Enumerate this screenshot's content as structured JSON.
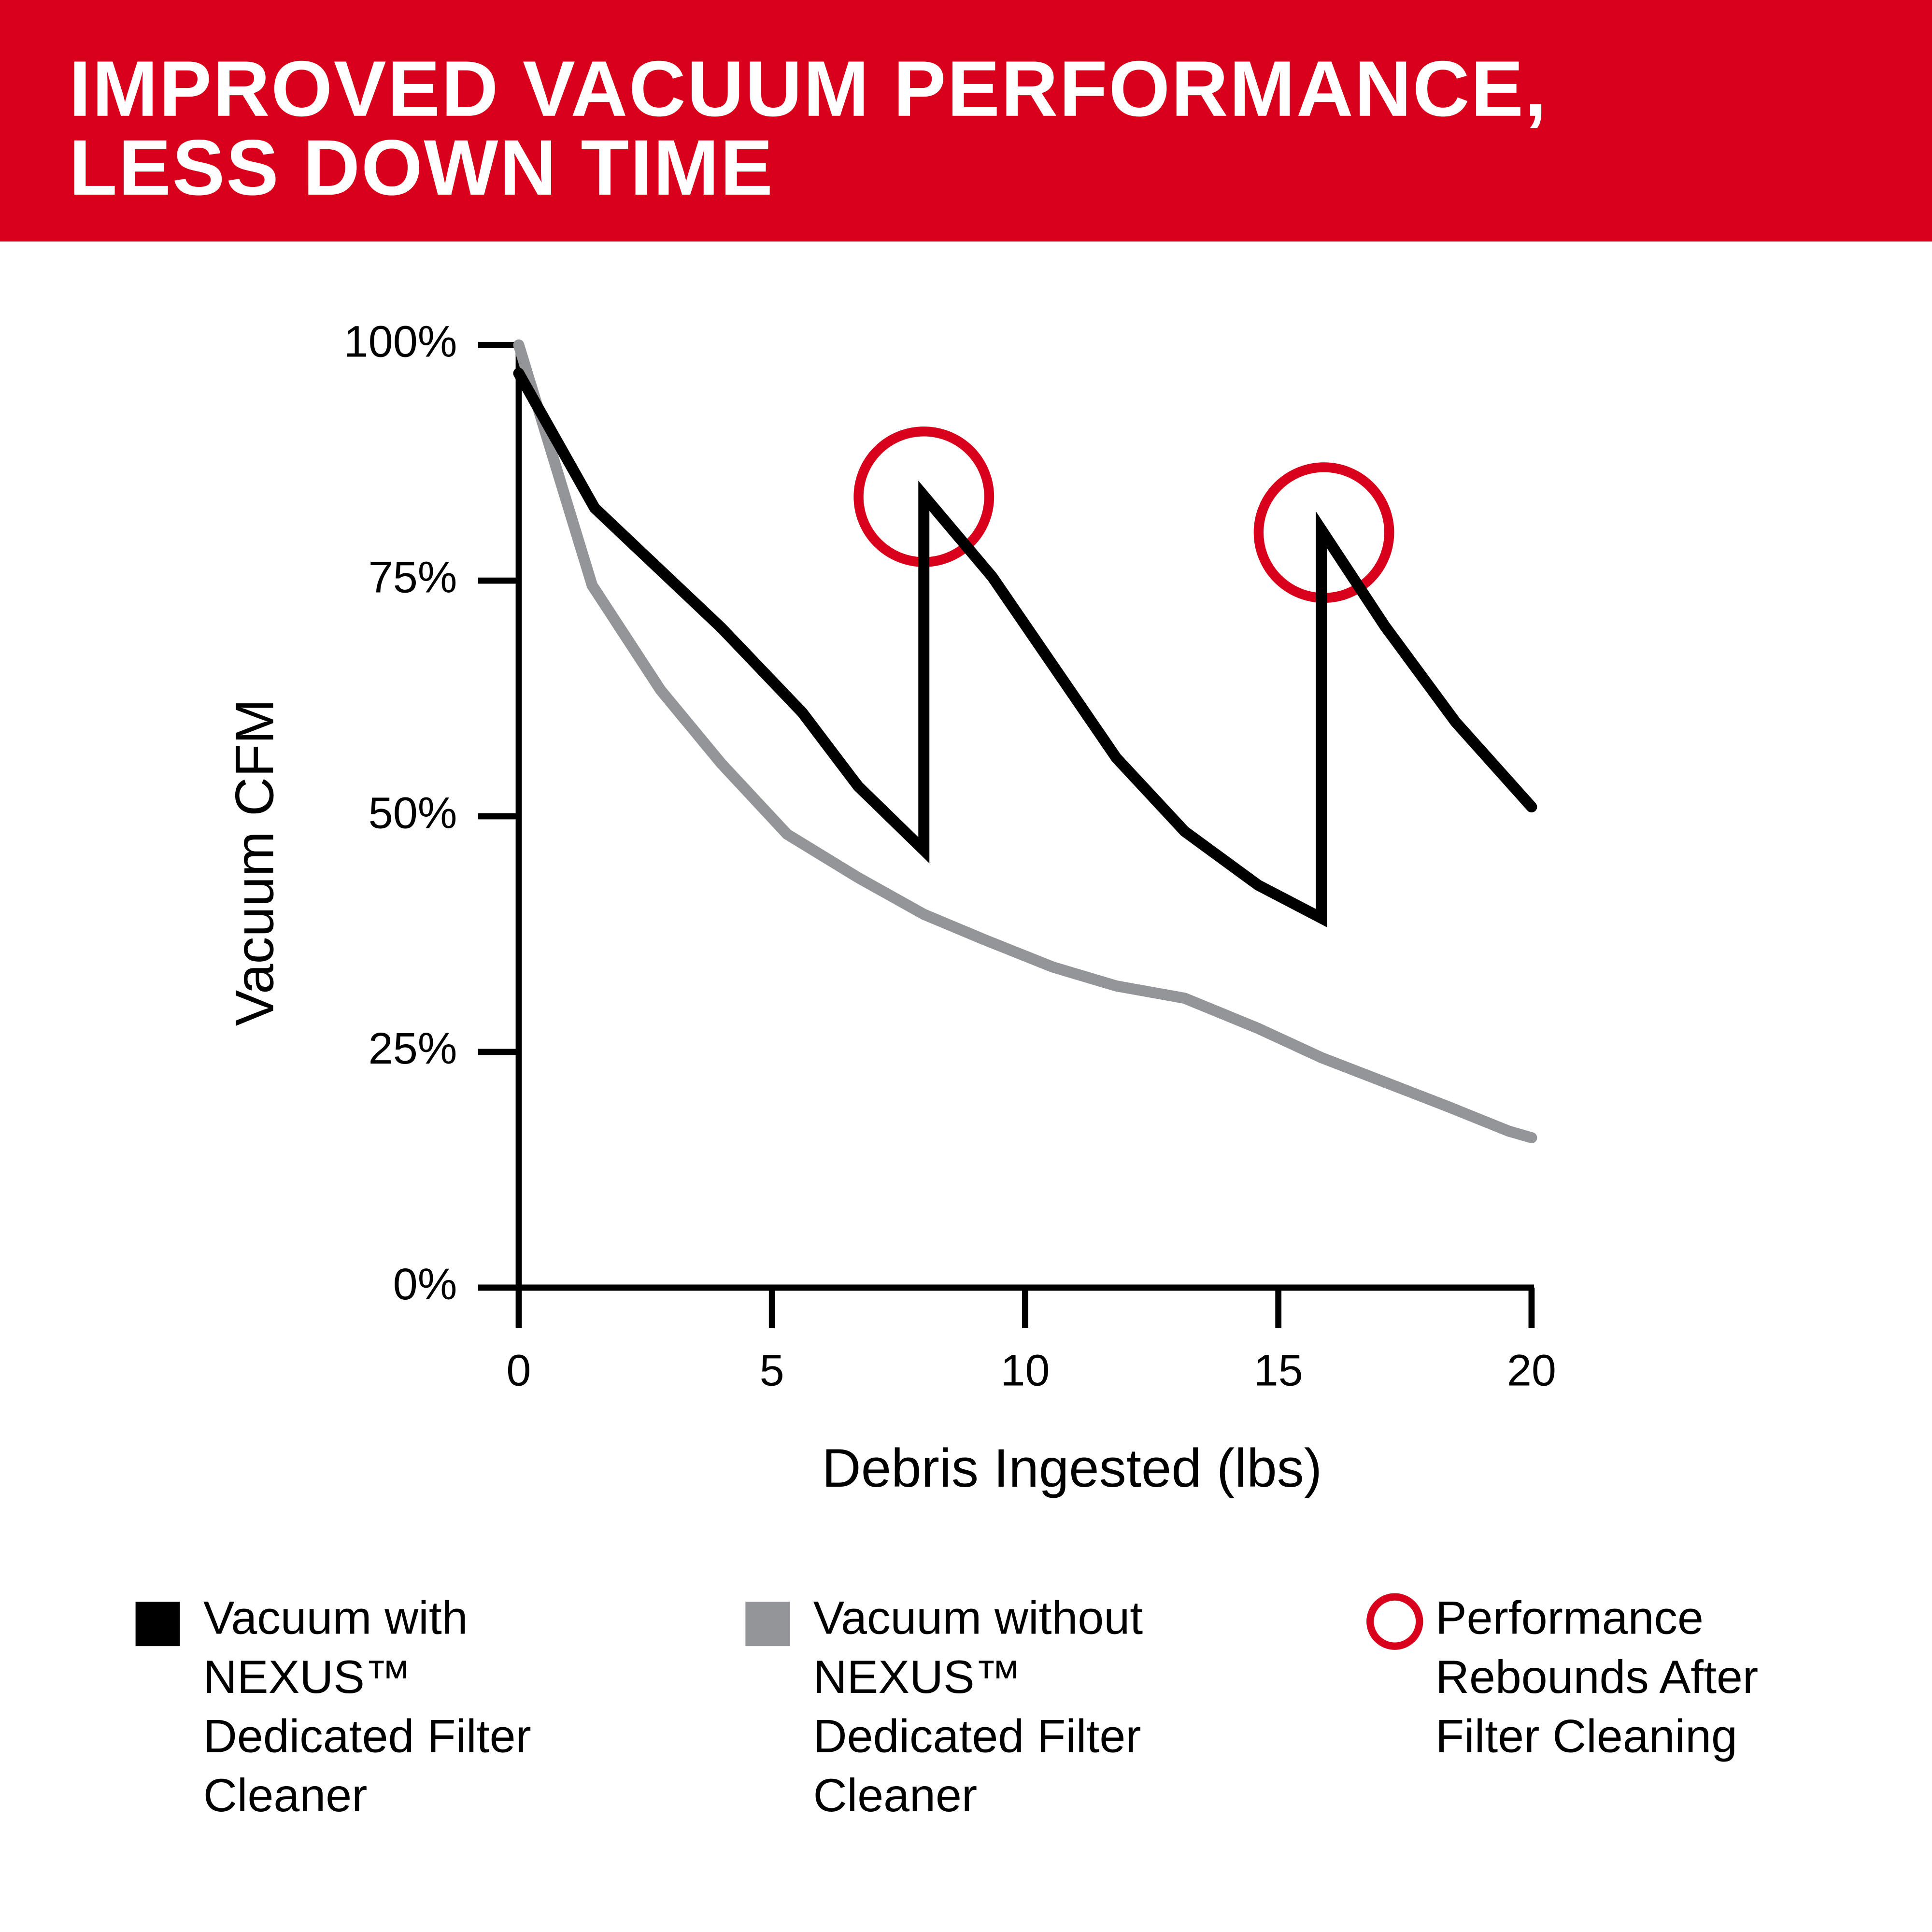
{
  "chart_data": {
    "type": "line",
    "title": "IMPROVED VACUUM PERFORMANCE,\nLESS DOWN TIME",
    "x_label": "Debris Ingested (lbs)",
    "y_label": "Vacuum CFM",
    "xlim": [
      0,
      20
    ],
    "xticks": [
      0,
      5,
      10,
      15,
      20
    ],
    "ylim": [
      0,
      100
    ],
    "yticks": [
      {
        "value": 0,
        "label": "0%"
      },
      {
        "value": 25,
        "label": "25%"
      },
      {
        "value": 50,
        "label": "50%"
      },
      {
        "value": 75,
        "label": "75%"
      },
      {
        "value": 100,
        "label": "100%"
      }
    ],
    "series": [
      {
        "name": "Vacuum with NEXUS™ Dedicated Filter Cleaner",
        "color": "#000000",
        "marker": "line",
        "x": [
          0,
          1.5,
          4,
          5.6,
          6.7,
          8,
          8,
          9.35,
          10.55,
          11.8,
          13.15,
          14.6,
          15.85,
          15.85,
          17.1,
          18.5,
          20
        ],
        "values": [
          97,
          82.7,
          70,
          61,
          53.2,
          46.4,
          84,
          75.4,
          66,
          56.2,
          48.4,
          42.7,
          39.2,
          80.4,
          70.2,
          60,
          51
        ]
      },
      {
        "name": "Vacuum without NEXUS™ Dedicated Filter Cleaner",
        "color": "#939598",
        "marker": "line",
        "x": [
          0,
          1.45,
          2.8,
          4,
          5.3,
          6.7,
          8,
          9.2,
          10.55,
          11.8,
          13.15,
          14.6,
          15.85,
          17.1,
          18.35,
          19.55,
          20
        ],
        "values": [
          100,
          74.5,
          63.4,
          55.6,
          48.1,
          43.5,
          39.6,
          36.9,
          34,
          32,
          30.7,
          27.5,
          24.4,
          21.8,
          19.2,
          16.6,
          15.9
        ]
      },
      {
        "name": "Performance Rebounds After Filter Cleaning",
        "color": "#d9001b",
        "marker": "circle",
        "x": [
          8,
          15.9
        ],
        "values": [
          83.9,
          80.1
        ]
      }
    ]
  }
}
